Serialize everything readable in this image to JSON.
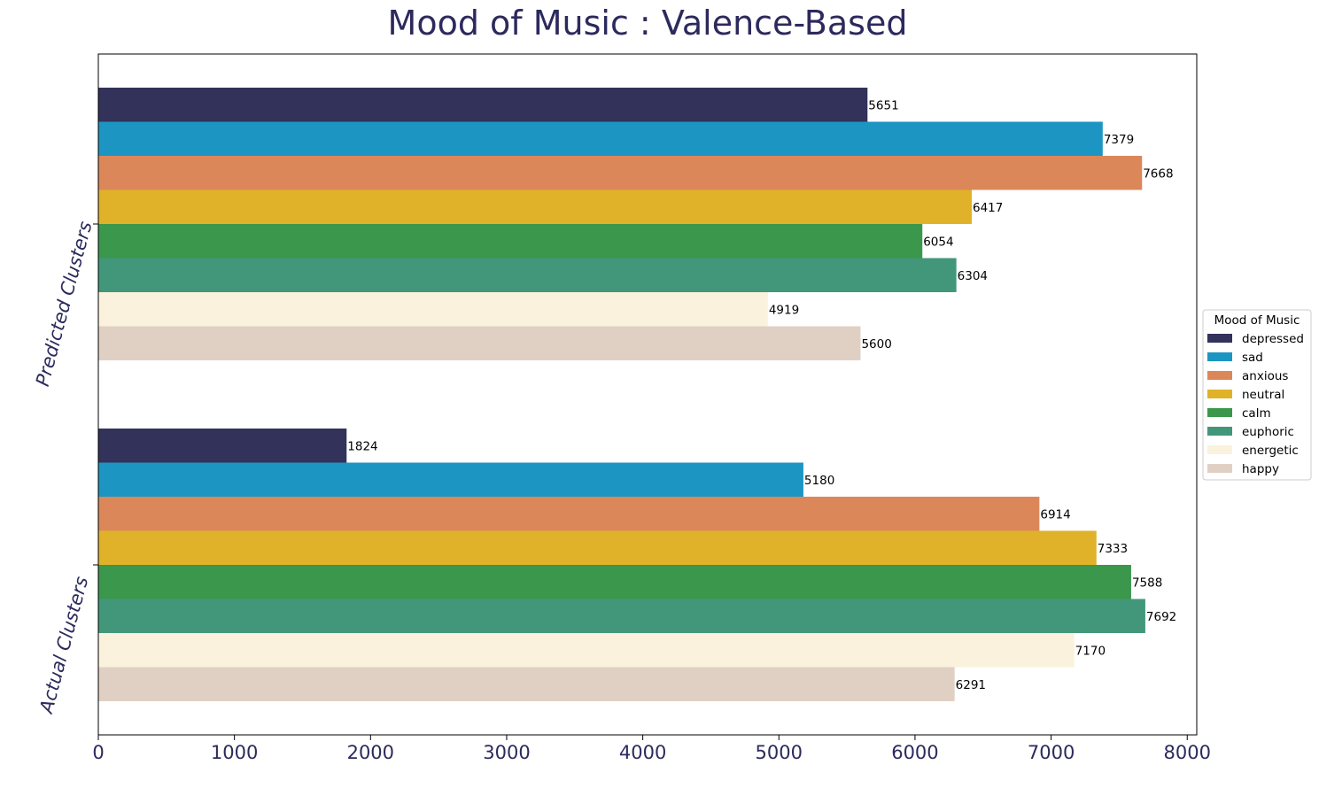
{
  "chart_data": {
    "type": "bar",
    "orientation": "horizontal",
    "title": "Mood of Music : Valence-Based",
    "categories": [
      "Predicted Clusters",
      "Actual Clusters"
    ],
    "series": [
      {
        "name": "depressed",
        "color": "#32325a",
        "values": [
          5651,
          1824
        ]
      },
      {
        "name": "sad",
        "color": "#1c95c2",
        "values": [
          7379,
          5180
        ]
      },
      {
        "name": "anxious",
        "color": "#dc8759",
        "values": [
          7668,
          6914
        ]
      },
      {
        "name": "neutral",
        "color": "#e0b22a",
        "values": [
          6417,
          7333
        ]
      },
      {
        "name": "calm",
        "color": "#3a974c",
        "values": [
          6054,
          7588
        ]
      },
      {
        "name": "euphoric",
        "color": "#42977a",
        "values": [
          6304,
          7692
        ]
      },
      {
        "name": "energetic",
        "color": "#faf2dc",
        "values": [
          4919,
          7170
        ]
      },
      {
        "name": "happy",
        "color": "#e0d0c4",
        "values": [
          5600,
          6291
        ]
      }
    ],
    "xlim": [
      0,
      8070
    ],
    "xticks": [
      "0",
      "1000",
      "2000",
      "3000",
      "4000",
      "5000",
      "6000",
      "7000",
      "8000"
    ],
    "xlabel": "",
    "ylabel": "",
    "grid": false,
    "legend": {
      "title": "Mood of Music",
      "placement": "right"
    }
  }
}
